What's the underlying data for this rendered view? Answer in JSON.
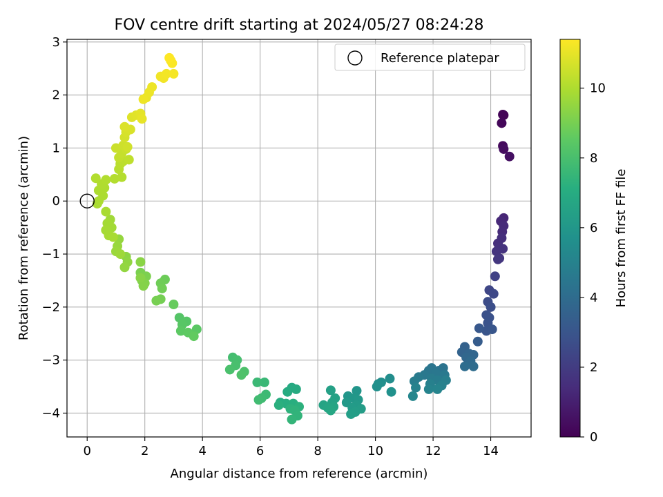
{
  "chart_data": {
    "type": "scatter",
    "title": "FOV centre drift starting at 2024/05/27 08:24:28",
    "xlabel": "Angular distance from reference (arcmin)",
    "ylabel": "Rotation from reference (arcmin)",
    "xlim": [
      -0.7,
      15.4
    ],
    "ylim": [
      -4.45,
      3.05
    ],
    "xticks": [
      0,
      2,
      4,
      6,
      8,
      10,
      12,
      14
    ],
    "yticks": [
      -4,
      -3,
      -2,
      -1,
      0,
      1,
      2,
      3
    ],
    "grid": true,
    "legend": {
      "placement": "top-right",
      "entries": [
        "Reference platepar"
      ]
    },
    "reference_point": {
      "x": 0,
      "y": 0
    },
    "colorbar": {
      "label": "Hours from first FF file",
      "min": 0,
      "max": 11.4,
      "ticks": [
        0,
        2,
        4,
        6,
        8,
        10
      ],
      "colormap": "viridis"
    },
    "points": [
      {
        "x": 14.45,
        "y": 1.62,
        "t": 0.0
      },
      {
        "x": 14.42,
        "y": 1.63,
        "t": 0.1
      },
      {
        "x": 14.38,
        "y": 1.47,
        "t": 0.2
      },
      {
        "x": 14.42,
        "y": 1.04,
        "t": 0.3
      },
      {
        "x": 14.45,
        "y": 0.98,
        "t": 0.4
      },
      {
        "x": 14.65,
        "y": 0.84,
        "t": 0.5
      },
      {
        "x": 14.45,
        "y": -0.32,
        "t": 1.2
      },
      {
        "x": 14.35,
        "y": -0.38,
        "t": 1.3
      },
      {
        "x": 14.45,
        "y": -0.47,
        "t": 1.35
      },
      {
        "x": 14.4,
        "y": -0.58,
        "t": 1.4
      },
      {
        "x": 14.38,
        "y": -0.7,
        "t": 1.5
      },
      {
        "x": 14.25,
        "y": -0.8,
        "t": 1.55
      },
      {
        "x": 14.3,
        "y": -0.88,
        "t": 1.6
      },
      {
        "x": 14.42,
        "y": -0.9,
        "t": 1.65
      },
      {
        "x": 14.2,
        "y": -0.95,
        "t": 1.7
      },
      {
        "x": 14.3,
        "y": -1.08,
        "t": 1.75
      },
      {
        "x": 14.25,
        "y": -1.1,
        "t": 1.8
      },
      {
        "x": 14.15,
        "y": -1.42,
        "t": 2.2
      },
      {
        "x": 13.95,
        "y": -1.68,
        "t": 2.4
      },
      {
        "x": 14.1,
        "y": -1.75,
        "t": 2.45
      },
      {
        "x": 13.9,
        "y": -1.9,
        "t": 2.6
      },
      {
        "x": 14.0,
        "y": -2.0,
        "t": 2.7
      },
      {
        "x": 13.85,
        "y": -2.15,
        "t": 2.8
      },
      {
        "x": 13.95,
        "y": -2.2,
        "t": 2.85
      },
      {
        "x": 13.9,
        "y": -2.3,
        "t": 2.9
      },
      {
        "x": 13.85,
        "y": -2.45,
        "t": 3.0
      },
      {
        "x": 14.05,
        "y": -2.42,
        "t": 3.05
      },
      {
        "x": 13.6,
        "y": -2.4,
        "t": 3.1
      },
      {
        "x": 13.55,
        "y": -2.65,
        "t": 3.3
      },
      {
        "x": 13.1,
        "y": -2.75,
        "t": 3.5
      },
      {
        "x": 13.0,
        "y": -2.85,
        "t": 3.6
      },
      {
        "x": 13.25,
        "y": -2.88,
        "t": 3.7
      },
      {
        "x": 13.4,
        "y": -2.9,
        "t": 3.75
      },
      {
        "x": 13.15,
        "y": -2.95,
        "t": 3.8
      },
      {
        "x": 13.3,
        "y": -3.02,
        "t": 3.9
      },
      {
        "x": 13.4,
        "y": -3.12,
        "t": 4.0
      },
      {
        "x": 13.1,
        "y": -3.12,
        "t": 4.05
      },
      {
        "x": 12.35,
        "y": -3.15,
        "t": 4.3
      },
      {
        "x": 12.2,
        "y": -3.2,
        "t": 4.35
      },
      {
        "x": 11.95,
        "y": -3.15,
        "t": 4.4
      },
      {
        "x": 11.85,
        "y": -3.2,
        "t": 4.45
      },
      {
        "x": 12.1,
        "y": -3.25,
        "t": 4.5
      },
      {
        "x": 11.7,
        "y": -3.28,
        "t": 4.55
      },
      {
        "x": 12.4,
        "y": -3.28,
        "t": 4.6
      },
      {
        "x": 11.5,
        "y": -3.32,
        "t": 4.65
      },
      {
        "x": 11.95,
        "y": -3.35,
        "t": 4.7
      },
      {
        "x": 12.15,
        "y": -3.38,
        "t": 4.75
      },
      {
        "x": 11.35,
        "y": -3.4,
        "t": 4.8
      },
      {
        "x": 12.45,
        "y": -3.38,
        "t": 4.85
      },
      {
        "x": 11.9,
        "y": -3.45,
        "t": 4.9
      },
      {
        "x": 12.3,
        "y": -3.48,
        "t": 4.95
      },
      {
        "x": 11.4,
        "y": -3.52,
        "t": 5.0
      },
      {
        "x": 11.85,
        "y": -3.55,
        "t": 5.05
      },
      {
        "x": 12.15,
        "y": -3.55,
        "t": 5.1
      },
      {
        "x": 11.3,
        "y": -3.68,
        "t": 5.2
      },
      {
        "x": 10.5,
        "y": -3.35,
        "t": 5.5
      },
      {
        "x": 10.2,
        "y": -3.42,
        "t": 5.55
      },
      {
        "x": 10.1,
        "y": -3.45,
        "t": 5.6
      },
      {
        "x": 10.05,
        "y": -3.5,
        "t": 5.65
      },
      {
        "x": 10.55,
        "y": -3.6,
        "t": 5.7
      },
      {
        "x": 9.35,
        "y": -3.58,
        "t": 5.9
      },
      {
        "x": 9.05,
        "y": -3.68,
        "t": 5.95
      },
      {
        "x": 9.25,
        "y": -3.72,
        "t": 6.0
      },
      {
        "x": 9.4,
        "y": -3.75,
        "t": 6.05
      },
      {
        "x": 9.0,
        "y": -3.8,
        "t": 6.1
      },
      {
        "x": 9.35,
        "y": -3.85,
        "t": 6.15
      },
      {
        "x": 9.2,
        "y": -3.9,
        "t": 6.2
      },
      {
        "x": 9.5,
        "y": -3.92,
        "t": 6.25
      },
      {
        "x": 9.3,
        "y": -3.98,
        "t": 6.3
      },
      {
        "x": 9.15,
        "y": -4.02,
        "t": 6.35
      },
      {
        "x": 8.45,
        "y": -3.57,
        "t": 6.45
      },
      {
        "x": 8.6,
        "y": -3.72,
        "t": 6.5
      },
      {
        "x": 8.5,
        "y": -3.8,
        "t": 6.55
      },
      {
        "x": 8.2,
        "y": -3.85,
        "t": 6.6
      },
      {
        "x": 8.55,
        "y": -3.88,
        "t": 6.65
      },
      {
        "x": 8.35,
        "y": -3.9,
        "t": 6.7
      },
      {
        "x": 8.45,
        "y": -3.95,
        "t": 6.75
      },
      {
        "x": 7.1,
        "y": -3.52,
        "t": 6.9
      },
      {
        "x": 7.25,
        "y": -3.55,
        "t": 6.95
      },
      {
        "x": 6.95,
        "y": -3.6,
        "t": 7.0
      },
      {
        "x": 6.7,
        "y": -3.8,
        "t": 7.05
      },
      {
        "x": 6.9,
        "y": -3.82,
        "t": 7.1
      },
      {
        "x": 7.15,
        "y": -3.82,
        "t": 7.15
      },
      {
        "x": 6.65,
        "y": -3.85,
        "t": 7.2
      },
      {
        "x": 7.35,
        "y": -3.88,
        "t": 7.25
      },
      {
        "x": 7.05,
        "y": -3.92,
        "t": 7.3
      },
      {
        "x": 7.2,
        "y": -3.95,
        "t": 7.35
      },
      {
        "x": 7.3,
        "y": -4.05,
        "t": 7.4
      },
      {
        "x": 7.1,
        "y": -4.12,
        "t": 7.45
      },
      {
        "x": 6.15,
        "y": -3.42,
        "t": 7.6
      },
      {
        "x": 5.9,
        "y": -3.42,
        "t": 7.65
      },
      {
        "x": 6.2,
        "y": -3.65,
        "t": 7.7
      },
      {
        "x": 6.05,
        "y": -3.72,
        "t": 7.75
      },
      {
        "x": 5.95,
        "y": -3.75,
        "t": 7.8
      },
      {
        "x": 5.05,
        "y": -2.95,
        "t": 7.9
      },
      {
        "x": 5.2,
        "y": -3.0,
        "t": 7.95
      },
      {
        "x": 5.15,
        "y": -3.1,
        "t": 8.0
      },
      {
        "x": 4.95,
        "y": -3.18,
        "t": 8.05
      },
      {
        "x": 5.45,
        "y": -3.22,
        "t": 8.1
      },
      {
        "x": 5.35,
        "y": -3.28,
        "t": 8.15
      },
      {
        "x": 3.2,
        "y": -2.2,
        "t": 8.3
      },
      {
        "x": 3.45,
        "y": -2.27,
        "t": 8.35
      },
      {
        "x": 3.3,
        "y": -2.33,
        "t": 8.4
      },
      {
        "x": 3.8,
        "y": -2.42,
        "t": 8.45
      },
      {
        "x": 3.25,
        "y": -2.45,
        "t": 8.5
      },
      {
        "x": 3.5,
        "y": -2.48,
        "t": 8.55
      },
      {
        "x": 3.7,
        "y": -2.55,
        "t": 8.6
      },
      {
        "x": 3.0,
        "y": -1.95,
        "t": 8.7
      },
      {
        "x": 2.7,
        "y": -1.48,
        "t": 8.8
      },
      {
        "x": 2.55,
        "y": -1.55,
        "t": 8.85
      },
      {
        "x": 2.6,
        "y": -1.65,
        "t": 8.9
      },
      {
        "x": 2.55,
        "y": -1.85,
        "t": 8.95
      },
      {
        "x": 2.4,
        "y": -1.88,
        "t": 9.0
      },
      {
        "x": 1.85,
        "y": -1.35,
        "t": 9.05
      },
      {
        "x": 2.05,
        "y": -1.42,
        "t": 9.1
      },
      {
        "x": 1.9,
        "y": -1.5,
        "t": 9.15
      },
      {
        "x": 2.0,
        "y": -1.55,
        "t": 9.2
      },
      {
        "x": 1.95,
        "y": -1.6,
        "t": 9.25
      },
      {
        "x": 1.85,
        "y": -1.45,
        "t": 9.3
      },
      {
        "x": 1.85,
        "y": -1.15,
        "t": 9.35
      },
      {
        "x": 1.35,
        "y": -1.05,
        "t": 9.4
      },
      {
        "x": 1.4,
        "y": -1.15,
        "t": 9.45
      },
      {
        "x": 1.3,
        "y": -1.25,
        "t": 9.5
      },
      {
        "x": 1.1,
        "y": -0.72,
        "t": 9.55
      },
      {
        "x": 1.05,
        "y": -0.85,
        "t": 9.6
      },
      {
        "x": 1.0,
        "y": -0.95,
        "t": 9.65
      },
      {
        "x": 1.15,
        "y": -1.0,
        "t": 9.7
      },
      {
        "x": 0.8,
        "y": -0.35,
        "t": 9.75
      },
      {
        "x": 0.85,
        "y": -0.5,
        "t": 9.8
      },
      {
        "x": 0.7,
        "y": -0.42,
        "t": 9.82
      },
      {
        "x": 0.65,
        "y": -0.55,
        "t": 9.84
      },
      {
        "x": 0.75,
        "y": -0.65,
        "t": 9.86
      },
      {
        "x": 0.9,
        "y": -0.68,
        "t": 9.88
      },
      {
        "x": 0.65,
        "y": -0.2,
        "t": 9.9
      },
      {
        "x": 0.35,
        "y": -0.05,
        "t": 9.92
      },
      {
        "x": 0.4,
        "y": 0.0,
        "t": 9.94
      },
      {
        "x": 0.55,
        "y": 0.1,
        "t": 9.96
      },
      {
        "x": 0.4,
        "y": 0.2,
        "t": 9.98
      },
      {
        "x": 0.6,
        "y": 0.25,
        "t": 10.0
      },
      {
        "x": 0.5,
        "y": 0.32,
        "t": 10.02
      },
      {
        "x": 0.65,
        "y": 0.4,
        "t": 10.04
      },
      {
        "x": 0.3,
        "y": 0.43,
        "t": 10.06
      },
      {
        "x": 0.95,
        "y": 0.42,
        "t": 10.08
      },
      {
        "x": 1.2,
        "y": 0.45,
        "t": 10.1
      },
      {
        "x": 1.1,
        "y": 0.6,
        "t": 10.15
      },
      {
        "x": 1.15,
        "y": 0.7,
        "t": 10.2
      },
      {
        "x": 1.25,
        "y": 0.75,
        "t": 10.25
      },
      {
        "x": 1.45,
        "y": 0.78,
        "t": 10.3
      },
      {
        "x": 1.1,
        "y": 0.82,
        "t": 10.35
      },
      {
        "x": 1.2,
        "y": 0.9,
        "t": 10.4
      },
      {
        "x": 1.35,
        "y": 0.98,
        "t": 10.45
      },
      {
        "x": 1.0,
        "y": 1.0,
        "t": 10.5
      },
      {
        "x": 1.25,
        "y": 1.05,
        "t": 10.55
      },
      {
        "x": 1.4,
        "y": 1.02,
        "t": 10.6
      },
      {
        "x": 1.3,
        "y": 1.2,
        "t": 10.65
      },
      {
        "x": 1.35,
        "y": 1.3,
        "t": 10.7
      },
      {
        "x": 1.5,
        "y": 1.35,
        "t": 10.75
      },
      {
        "x": 1.3,
        "y": 1.4,
        "t": 10.8
      },
      {
        "x": 1.55,
        "y": 1.58,
        "t": 10.85
      },
      {
        "x": 1.7,
        "y": 1.62,
        "t": 10.9
      },
      {
        "x": 1.85,
        "y": 1.65,
        "t": 10.95
      },
      {
        "x": 1.9,
        "y": 1.55,
        "t": 11.0
      },
      {
        "x": 2.05,
        "y": 1.95,
        "t": 11.05
      },
      {
        "x": 2.15,
        "y": 2.05,
        "t": 11.1
      },
      {
        "x": 2.25,
        "y": 2.15,
        "t": 11.12
      },
      {
        "x": 1.95,
        "y": 1.92,
        "t": 11.14
      },
      {
        "x": 2.55,
        "y": 2.35,
        "t": 11.18
      },
      {
        "x": 2.65,
        "y": 2.32,
        "t": 11.2
      },
      {
        "x": 2.75,
        "y": 2.4,
        "t": 11.22
      },
      {
        "x": 3.0,
        "y": 2.4,
        "t": 11.25
      },
      {
        "x": 2.9,
        "y": 2.65,
        "t": 11.3
      },
      {
        "x": 2.95,
        "y": 2.6,
        "t": 11.35
      },
      {
        "x": 2.85,
        "y": 2.7,
        "t": 11.4
      }
    ]
  }
}
